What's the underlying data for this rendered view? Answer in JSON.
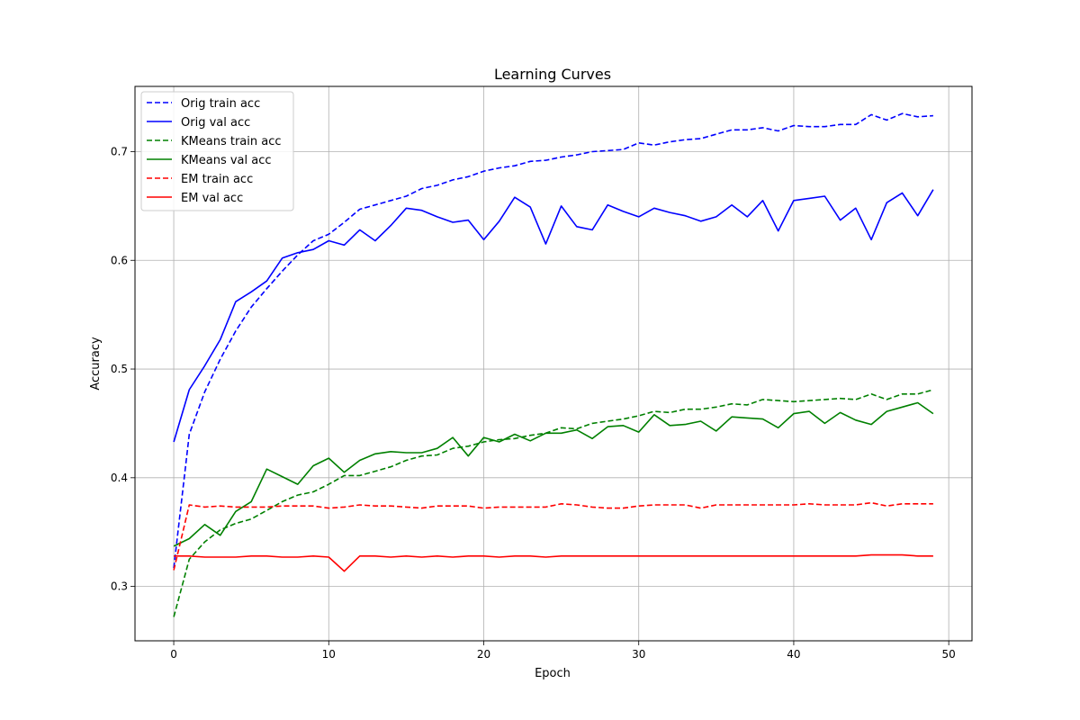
{
  "chart_data": {
    "type": "line",
    "title": "Learning Curves",
    "xlabel": "Epoch",
    "ylabel": "Accuracy",
    "xlim": [
      -2.5,
      51.5
    ],
    "ylim": [
      0.25,
      0.76
    ],
    "xticks": [
      0,
      10,
      20,
      30,
      40,
      50
    ],
    "yticks": [
      0.3,
      0.4,
      0.5,
      0.6,
      0.7
    ],
    "xtick_labels": [
      "0",
      "10",
      "20",
      "30",
      "40",
      "50"
    ],
    "ytick_labels": [
      "0.3",
      "0.4",
      "0.5",
      "0.6",
      "0.7"
    ],
    "grid": true,
    "legend_position": "top-left",
    "x": [
      0,
      1,
      2,
      3,
      4,
      5,
      6,
      7,
      8,
      9,
      10,
      11,
      12,
      13,
      14,
      15,
      16,
      17,
      18,
      19,
      20,
      21,
      22,
      23,
      24,
      25,
      26,
      27,
      28,
      29,
      30,
      31,
      32,
      33,
      34,
      35,
      36,
      37,
      38,
      39,
      40,
      41,
      42,
      43,
      44,
      45,
      46,
      47,
      48,
      49
    ],
    "series": [
      {
        "name": "Orig train acc",
        "color": "#0000ff",
        "style": "dashed",
        "values": [
          0.317,
          0.44,
          0.479,
          0.509,
          0.535,
          0.557,
          0.574,
          0.59,
          0.605,
          0.618,
          0.624,
          0.635,
          0.647,
          0.651,
          0.655,
          0.659,
          0.666,
          0.669,
          0.674,
          0.677,
          0.682,
          0.685,
          0.687,
          0.691,
          0.692,
          0.695,
          0.697,
          0.7,
          0.701,
          0.702,
          0.708,
          0.706,
          0.709,
          0.711,
          0.712,
          0.716,
          0.72,
          0.72,
          0.722,
          0.719,
          0.724,
          0.723,
          0.723,
          0.725,
          0.725,
          0.734,
          0.729,
          0.735,
          0.732,
          0.733
        ]
      },
      {
        "name": "Orig val acc",
        "color": "#0000ff",
        "style": "solid",
        "values": [
          0.433,
          0.481,
          0.503,
          0.527,
          0.562,
          0.571,
          0.581,
          0.602,
          0.607,
          0.61,
          0.618,
          0.614,
          0.628,
          0.618,
          0.632,
          0.648,
          0.646,
          0.64,
          0.635,
          0.637,
          0.619,
          0.636,
          0.658,
          0.649,
          0.615,
          0.65,
          0.631,
          0.628,
          0.651,
          0.645,
          0.64,
          0.648,
          0.644,
          0.641,
          0.636,
          0.64,
          0.651,
          0.64,
          0.655,
          0.627,
          0.655,
          0.657,
          0.659,
          0.637,
          0.648,
          0.619,
          0.653,
          0.662,
          0.641,
          0.665
        ]
      },
      {
        "name": "KMeans train acc",
        "color": "#008000",
        "style": "dashed",
        "values": [
          0.272,
          0.325,
          0.341,
          0.352,
          0.358,
          0.362,
          0.37,
          0.378,
          0.384,
          0.387,
          0.394,
          0.402,
          0.402,
          0.406,
          0.41,
          0.416,
          0.42,
          0.421,
          0.427,
          0.429,
          0.433,
          0.435,
          0.436,
          0.439,
          0.441,
          0.446,
          0.445,
          0.45,
          0.452,
          0.454,
          0.457,
          0.461,
          0.46,
          0.463,
          0.463,
          0.465,
          0.468,
          0.467,
          0.472,
          0.471,
          0.47,
          0.471,
          0.472,
          0.473,
          0.472,
          0.477,
          0.472,
          0.477,
          0.477,
          0.481
        ]
      },
      {
        "name": "KMeans val acc",
        "color": "#008000",
        "style": "solid",
        "values": [
          0.337,
          0.344,
          0.357,
          0.347,
          0.369,
          0.378,
          0.408,
          0.401,
          0.394,
          0.411,
          0.418,
          0.405,
          0.416,
          0.422,
          0.424,
          0.423,
          0.423,
          0.427,
          0.437,
          0.42,
          0.437,
          0.433,
          0.44,
          0.434,
          0.441,
          0.441,
          0.444,
          0.436,
          0.447,
          0.448,
          0.442,
          0.458,
          0.448,
          0.449,
          0.452,
          0.443,
          0.456,
          0.455,
          0.454,
          0.446,
          0.459,
          0.461,
          0.45,
          0.46,
          0.453,
          0.449,
          0.461,
          0.465,
          0.469,
          0.459
        ]
      },
      {
        "name": "EM train acc",
        "color": "#ff0000",
        "style": "dashed",
        "values": [
          0.315,
          0.375,
          0.373,
          0.374,
          0.373,
          0.373,
          0.373,
          0.374,
          0.374,
          0.374,
          0.372,
          0.373,
          0.375,
          0.374,
          0.374,
          0.373,
          0.372,
          0.374,
          0.374,
          0.374,
          0.372,
          0.373,
          0.373,
          0.373,
          0.373,
          0.376,
          0.375,
          0.373,
          0.372,
          0.372,
          0.374,
          0.375,
          0.375,
          0.375,
          0.372,
          0.375,
          0.375,
          0.375,
          0.375,
          0.375,
          0.375,
          0.376,
          0.375,
          0.375,
          0.375,
          0.377,
          0.374,
          0.376,
          0.376,
          0.376
        ]
      },
      {
        "name": "EM val acc",
        "color": "#ff0000",
        "style": "solid",
        "values": [
          0.328,
          0.328,
          0.327,
          0.327,
          0.327,
          0.328,
          0.328,
          0.327,
          0.327,
          0.328,
          0.327,
          0.314,
          0.328,
          0.328,
          0.327,
          0.328,
          0.327,
          0.328,
          0.327,
          0.328,
          0.328,
          0.327,
          0.328,
          0.328,
          0.327,
          0.328,
          0.328,
          0.328,
          0.328,
          0.328,
          0.328,
          0.328,
          0.328,
          0.328,
          0.328,
          0.328,
          0.328,
          0.328,
          0.328,
          0.328,
          0.328,
          0.328,
          0.328,
          0.328,
          0.328,
          0.329,
          0.329,
          0.329,
          0.328,
          0.328
        ]
      }
    ]
  }
}
